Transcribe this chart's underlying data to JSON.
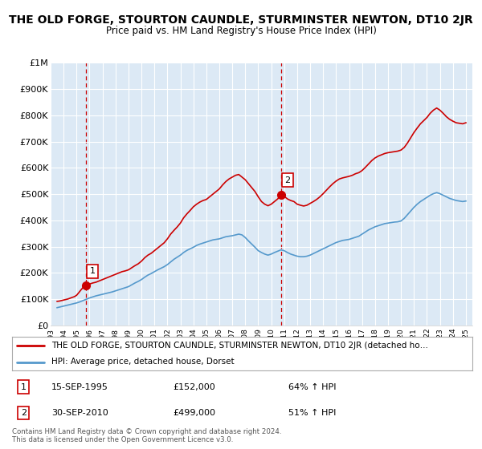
{
  "title": "THE OLD FORGE, STOURTON CAUNDLE, STURMINSTER NEWTON, DT10 2JR",
  "subtitle": "Price paid vs. HM Land Registry's House Price Index (HPI)",
  "title_fontsize": 10,
  "subtitle_fontsize": 8.5,
  "background_color": "#ffffff",
  "plot_bg_color": "#dce9f5",
  "grid_color": "#ffffff",
  "red_color": "#cc0000",
  "blue_color": "#5599cc",
  "dashed_color": "#cc0000",
  "ylim": [
    0,
    1000000
  ],
  "yticks": [
    0,
    100000,
    200000,
    300000,
    400000,
    500000,
    600000,
    700000,
    800000,
    900000,
    1000000
  ],
  "ytick_labels": [
    "£0",
    "£100K",
    "£200K",
    "£300K",
    "£400K",
    "£500K",
    "£600K",
    "£700K",
    "£800K",
    "£900K",
    "£1M"
  ],
  "xlim_start": 1993.0,
  "xlim_end": 2025.5,
  "xticks": [
    1993,
    1994,
    1995,
    1996,
    1997,
    1998,
    1999,
    2000,
    2001,
    2002,
    2003,
    2004,
    2005,
    2006,
    2007,
    2008,
    2009,
    2010,
    2011,
    2012,
    2013,
    2014,
    2015,
    2016,
    2017,
    2018,
    2019,
    2020,
    2021,
    2022,
    2023,
    2024,
    2025
  ],
  "purchase1_x": 1995.71,
  "purchase1_y": 152000,
  "purchase1_label": "1",
  "purchase2_x": 2010.75,
  "purchase2_y": 499000,
  "purchase2_label": "2",
  "legend_line1": "THE OLD FORGE, STOURTON CAUNDLE, STURMINSTER NEWTON, DT10 2JR (detached ho…",
  "legend_line2": "HPI: Average price, detached house, Dorset",
  "annotation1_date": "15-SEP-1995",
  "annotation1_price": "£152,000",
  "annotation1_hpi": "64% ↑ HPI",
  "annotation2_date": "30-SEP-2010",
  "annotation2_price": "£499,000",
  "annotation2_hpi": "51% ↑ HPI",
  "copyright_text": "Contains HM Land Registry data © Crown copyright and database right 2024.\nThis data is licensed under the Open Government Licence v3.0.",
  "red_line_x": [
    1993.5,
    1993.67,
    1993.83,
    1994.0,
    1994.17,
    1994.33,
    1994.5,
    1994.67,
    1994.83,
    1995.0,
    1995.17,
    1995.33,
    1995.5,
    1995.71,
    1996.0,
    1996.25,
    1996.5,
    1996.75,
    1997.0,
    1997.25,
    1997.5,
    1997.75,
    1998.0,
    1998.25,
    1998.5,
    1998.75,
    1999.0,
    1999.25,
    1999.5,
    1999.75,
    2000.0,
    2000.25,
    2000.5,
    2000.75,
    2001.0,
    2001.25,
    2001.5,
    2001.75,
    2002.0,
    2002.25,
    2002.5,
    2002.75,
    2003.0,
    2003.25,
    2003.5,
    2003.75,
    2004.0,
    2004.25,
    2004.5,
    2004.75,
    2005.0,
    2005.25,
    2005.5,
    2005.75,
    2006.0,
    2006.25,
    2006.5,
    2006.75,
    2007.0,
    2007.25,
    2007.5,
    2008.0,
    2008.25,
    2008.5,
    2008.75,
    2009.0,
    2009.25,
    2009.5,
    2009.75,
    2010.0,
    2010.25,
    2010.5,
    2010.75,
    2011.0,
    2011.25,
    2011.5,
    2011.75,
    2012.0,
    2012.25,
    2012.5,
    2012.75,
    2013.0,
    2013.25,
    2013.5,
    2013.75,
    2014.0,
    2014.25,
    2014.5,
    2014.75,
    2015.0,
    2015.25,
    2015.5,
    2015.75,
    2016.0,
    2016.25,
    2016.5,
    2016.75,
    2017.0,
    2017.25,
    2017.5,
    2017.75,
    2018.0,
    2018.25,
    2018.5,
    2018.75,
    2019.0,
    2019.25,
    2019.5,
    2019.75,
    2020.0,
    2020.25,
    2020.5,
    2020.75,
    2021.0,
    2021.25,
    2021.5,
    2021.75,
    2022.0,
    2022.25,
    2022.5,
    2022.75,
    2023.0,
    2023.25,
    2023.5,
    2023.75,
    2024.0,
    2024.25,
    2024.5,
    2024.75,
    2025.0
  ],
  "red_line_y": [
    92000,
    93000,
    95000,
    97000,
    99000,
    101000,
    104000,
    107000,
    110000,
    115000,
    125000,
    135000,
    145000,
    152000,
    158000,
    162000,
    165000,
    170000,
    175000,
    180000,
    185000,
    190000,
    195000,
    200000,
    205000,
    208000,
    212000,
    220000,
    228000,
    235000,
    245000,
    258000,
    268000,
    275000,
    285000,
    295000,
    305000,
    315000,
    330000,
    348000,
    362000,
    375000,
    390000,
    410000,
    425000,
    438000,
    452000,
    462000,
    470000,
    476000,
    480000,
    490000,
    500000,
    510000,
    520000,
    535000,
    548000,
    558000,
    565000,
    572000,
    575000,
    555000,
    540000,
    525000,
    510000,
    490000,
    472000,
    462000,
    456000,
    462000,
    472000,
    482000,
    499000,
    492000,
    482000,
    476000,
    472000,
    462000,
    458000,
    455000,
    458000,
    465000,
    472000,
    480000,
    490000,
    502000,
    515000,
    528000,
    540000,
    550000,
    558000,
    562000,
    565000,
    568000,
    572000,
    578000,
    582000,
    590000,
    602000,
    615000,
    628000,
    638000,
    645000,
    650000,
    655000,
    658000,
    660000,
    662000,
    664000,
    668000,
    678000,
    695000,
    715000,
    735000,
    752000,
    768000,
    780000,
    792000,
    808000,
    820000,
    828000,
    820000,
    808000,
    795000,
    785000,
    778000,
    772000,
    770000,
    768000,
    772000
  ],
  "blue_line_x": [
    1993.5,
    1993.67,
    1993.83,
    1994.0,
    1994.17,
    1994.33,
    1994.5,
    1994.67,
    1994.83,
    1995.0,
    1995.25,
    1995.5,
    1995.75,
    1996.0,
    1996.25,
    1996.5,
    1996.75,
    1997.0,
    1997.25,
    1997.5,
    1997.75,
    1998.0,
    1998.25,
    1998.5,
    1998.75,
    1999.0,
    1999.25,
    1999.5,
    1999.75,
    2000.0,
    2000.25,
    2000.5,
    2000.75,
    2001.0,
    2001.25,
    2001.5,
    2001.75,
    2002.0,
    2002.25,
    2002.5,
    2002.75,
    2003.0,
    2003.25,
    2003.5,
    2003.75,
    2004.0,
    2004.25,
    2004.5,
    2004.75,
    2005.0,
    2005.25,
    2005.5,
    2005.75,
    2006.0,
    2006.25,
    2006.5,
    2006.75,
    2007.0,
    2007.25,
    2007.5,
    2007.75,
    2008.0,
    2008.25,
    2008.5,
    2008.75,
    2009.0,
    2009.25,
    2009.5,
    2009.75,
    2010.0,
    2010.25,
    2010.5,
    2010.75,
    2011.0,
    2011.25,
    2011.5,
    2011.75,
    2012.0,
    2012.25,
    2012.5,
    2012.75,
    2013.0,
    2013.25,
    2013.5,
    2013.75,
    2014.0,
    2014.25,
    2014.5,
    2014.75,
    2015.0,
    2015.25,
    2015.5,
    2015.75,
    2016.0,
    2016.25,
    2016.5,
    2016.75,
    2017.0,
    2017.25,
    2017.5,
    2017.75,
    2018.0,
    2018.25,
    2018.5,
    2018.75,
    2019.0,
    2019.25,
    2019.5,
    2019.75,
    2020.0,
    2020.25,
    2020.5,
    2020.75,
    2021.0,
    2021.25,
    2021.5,
    2021.75,
    2022.0,
    2022.25,
    2022.5,
    2022.75,
    2023.0,
    2023.25,
    2023.5,
    2023.75,
    2024.0,
    2024.25,
    2024.5,
    2024.75,
    2025.0
  ],
  "blue_line_y": [
    68000,
    70000,
    72000,
    74000,
    76000,
    78000,
    80000,
    82000,
    84000,
    86000,
    90000,
    95000,
    100000,
    105000,
    109000,
    113000,
    116000,
    119000,
    122000,
    125000,
    128000,
    132000,
    136000,
    140000,
    144000,
    148000,
    155000,
    162000,
    168000,
    175000,
    184000,
    192000,
    198000,
    205000,
    212000,
    218000,
    224000,
    232000,
    242000,
    252000,
    260000,
    268000,
    278000,
    286000,
    292000,
    298000,
    305000,
    310000,
    314000,
    318000,
    322000,
    326000,
    328000,
    330000,
    334000,
    338000,
    340000,
    342000,
    345000,
    348000,
    345000,
    335000,
    322000,
    310000,
    298000,
    285000,
    278000,
    272000,
    268000,
    272000,
    278000,
    283000,
    288000,
    285000,
    278000,
    272000,
    268000,
    264000,
    262000,
    262000,
    264000,
    268000,
    274000,
    280000,
    286000,
    292000,
    298000,
    304000,
    310000,
    316000,
    320000,
    324000,
    326000,
    328000,
    332000,
    336000,
    340000,
    348000,
    356000,
    364000,
    370000,
    376000,
    380000,
    384000,
    388000,
    390000,
    392000,
    394000,
    395000,
    398000,
    408000,
    422000,
    436000,
    450000,
    462000,
    472000,
    480000,
    488000,
    496000,
    502000,
    506000,
    502000,
    496000,
    490000,
    484000,
    480000,
    476000,
    474000,
    472000,
    474000
  ]
}
